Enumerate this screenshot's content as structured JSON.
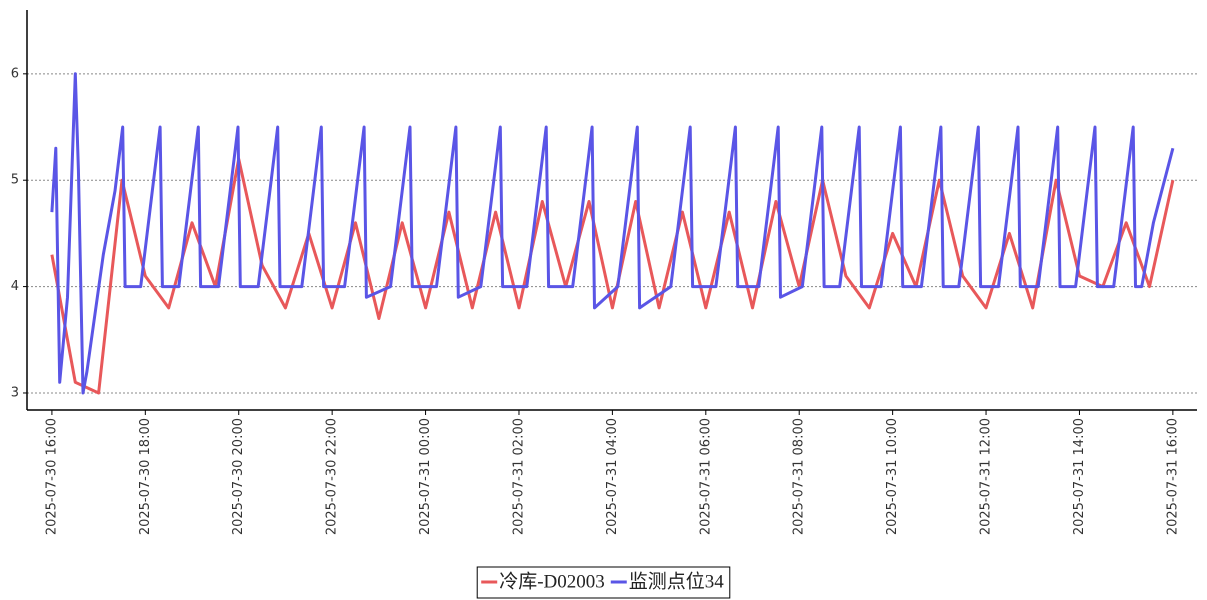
{
  "chart_data": {
    "type": "line",
    "xlim": [
      "2025-07-30 15:28",
      "2025-07-31 16:31"
    ],
    "ylim": [
      2.84,
      6.6
    ],
    "yticks": [
      3,
      4,
      5,
      6
    ],
    "xticks": [
      "2025-07-30 16:00",
      "2025-07-30 18:00",
      "2025-07-30 20:00",
      "2025-07-30 22:00",
      "2025-07-31 00:00",
      "2025-07-31 02:00",
      "2025-07-31 04:00",
      "2025-07-31 06:00",
      "2025-07-31 08:00",
      "2025-07-31 10:00",
      "2025-07-31 12:00",
      "2025-07-31 14:00",
      "2025-07-31 16:00"
    ],
    "grid": true,
    "legend": "bottom",
    "series": [
      {
        "name": "冷库-D02003",
        "color": "#e8585a",
        "x": [
          "2025-07-30 16:00",
          "2025-07-30 16:30",
          "2025-07-30 17:00",
          "2025-07-30 17:30",
          "2025-07-30 18:00",
          "2025-07-30 18:30",
          "2025-07-30 19:00",
          "2025-07-30 19:30",
          "2025-07-30 20:00",
          "2025-07-30 20:30",
          "2025-07-30 21:00",
          "2025-07-30 21:30",
          "2025-07-30 22:00",
          "2025-07-30 22:30",
          "2025-07-30 23:00",
          "2025-07-30 23:30",
          "2025-07-31 00:00",
          "2025-07-31 00:30",
          "2025-07-31 01:00",
          "2025-07-31 01:30",
          "2025-07-31 02:00",
          "2025-07-31 02:30",
          "2025-07-31 03:00",
          "2025-07-31 03:30",
          "2025-07-31 04:00",
          "2025-07-31 04:30",
          "2025-07-31 05:00",
          "2025-07-31 05:30",
          "2025-07-31 06:00",
          "2025-07-31 06:30",
          "2025-07-31 07:00",
          "2025-07-31 07:30",
          "2025-07-31 08:00",
          "2025-07-31 08:30",
          "2025-07-31 09:00",
          "2025-07-31 09:30",
          "2025-07-31 10:00",
          "2025-07-31 10:30",
          "2025-07-31 11:00",
          "2025-07-31 11:30",
          "2025-07-31 12:00",
          "2025-07-31 12:30",
          "2025-07-31 13:00",
          "2025-07-31 13:30",
          "2025-07-31 14:00",
          "2025-07-31 14:30",
          "2025-07-31 15:00",
          "2025-07-31 15:30",
          "2025-07-31 16:00"
        ],
        "values": [
          4.3,
          3.1,
          3.0,
          5.0,
          4.1,
          3.8,
          4.6,
          4.0,
          5.2,
          4.2,
          3.8,
          4.5,
          3.8,
          4.6,
          3.7,
          4.6,
          3.8,
          4.7,
          3.8,
          4.7,
          3.8,
          4.8,
          4.0,
          4.8,
          3.8,
          4.8,
          3.8,
          4.7,
          3.8,
          4.7,
          3.8,
          4.8,
          4.0,
          5.0,
          4.1,
          3.8,
          4.5,
          4.0,
          5.0,
          4.1,
          3.8,
          4.5,
          3.8,
          5.0,
          4.1,
          4.0,
          4.6,
          4.0,
          5.0
        ]
      },
      {
        "name": "监测点位34",
        "color": "#5a55e6",
        "x": [
          "2025-07-30 16:00",
          "2025-07-30 16:05",
          "2025-07-30 16:10",
          "2025-07-30 16:20",
          "2025-07-30 16:30",
          "2025-07-30 16:34",
          "2025-07-30 16:40",
          "2025-07-30 16:45",
          "2025-07-30 17:06",
          "2025-07-30 17:21",
          "2025-07-30 17:31",
          "2025-07-30 17:34",
          "2025-07-30 17:54",
          "2025-07-30 18:09",
          "2025-07-30 18:19",
          "2025-07-30 18:22",
          "2025-07-30 18:43",
          "2025-07-30 18:58",
          "2025-07-30 19:08",
          "2025-07-30 19:11",
          "2025-07-30 19:34",
          "2025-07-30 19:49",
          "2025-07-30 19:59",
          "2025-07-30 20:02",
          "2025-07-30 20:25",
          "2025-07-30 20:40",
          "2025-07-30 20:50",
          "2025-07-30 20:53",
          "2025-07-30 21:21",
          "2025-07-30 21:36",
          "2025-07-30 21:46",
          "2025-07-30 21:49",
          "2025-07-30 22:16",
          "2025-07-30 22:31",
          "2025-07-30 22:41",
          "2025-07-30 22:44",
          "2025-07-30 23:15",
          "2025-07-30 23:30",
          "2025-07-30 23:40",
          "2025-07-30 23:43",
          "2025-07-31 00:14",
          "2025-07-31 00:29",
          "2025-07-31 00:39",
          "2025-07-31 00:42",
          "2025-07-31 01:11",
          "2025-07-31 01:26",
          "2025-07-31 01:36",
          "2025-07-31 01:39",
          "2025-07-31 02:10",
          "2025-07-31 02:25",
          "2025-07-31 02:35",
          "2025-07-31 02:38",
          "2025-07-31 03:09",
          "2025-07-31 03:24",
          "2025-07-31 03:34",
          "2025-07-31 03:37",
          "2025-07-31 04:07",
          "2025-07-31 04:22",
          "2025-07-31 04:32",
          "2025-07-31 04:35",
          "2025-07-31 05:15",
          "2025-07-31 05:30",
          "2025-07-31 05:40",
          "2025-07-31 05:43",
          "2025-07-31 06:13",
          "2025-07-31 06:28",
          "2025-07-31 06:38",
          "2025-07-31 06:41",
          "2025-07-31 07:08",
          "2025-07-31 07:23",
          "2025-07-31 07:33",
          "2025-07-31 07:36",
          "2025-07-31 08:04",
          "2025-07-31 08:19",
          "2025-07-31 08:29",
          "2025-07-31 08:32",
          "2025-07-31 08:52",
          "2025-07-31 09:07",
          "2025-07-31 09:17",
          "2025-07-31 09:20",
          "2025-07-31 09:45",
          "2025-07-31 10:00",
          "2025-07-31 10:10",
          "2025-07-31 10:13",
          "2025-07-31 10:37",
          "2025-07-31 10:52",
          "2025-07-31 11:02",
          "2025-07-31 11:05",
          "2025-07-31 11:25",
          "2025-07-31 11:40",
          "2025-07-31 11:50",
          "2025-07-31 11:53",
          "2025-07-31 12:16",
          "2025-07-31 12:31",
          "2025-07-31 12:41",
          "2025-07-31 12:44",
          "2025-07-31 13:07",
          "2025-07-31 13:22",
          "2025-07-31 13:32",
          "2025-07-31 13:35",
          "2025-07-31 13:55",
          "2025-07-31 14:10",
          "2025-07-31 14:20",
          "2025-07-31 14:23",
          "2025-07-31 14:44",
          "2025-07-31 14:59",
          "2025-07-31 15:09",
          "2025-07-31 15:12",
          "2025-07-31 15:20",
          "2025-07-31 15:35",
          "2025-07-31 16:00"
        ],
        "values": [
          4.7,
          5.3,
          3.1,
          3.9,
          6.0,
          5.1,
          3.0,
          3.2,
          4.3,
          4.9,
          5.5,
          4.0,
          4.0,
          4.9,
          5.5,
          4.0,
          4.0,
          4.9,
          5.5,
          4.0,
          4.0,
          4.9,
          5.5,
          4.0,
          4.0,
          4.9,
          5.5,
          4.0,
          4.0,
          4.9,
          5.5,
          4.0,
          4.0,
          4.9,
          5.5,
          3.9,
          4.0,
          4.9,
          5.5,
          4.0,
          4.0,
          4.9,
          5.5,
          3.9,
          4.0,
          4.9,
          5.5,
          4.0,
          4.0,
          4.9,
          5.5,
          4.0,
          4.0,
          4.9,
          5.5,
          3.8,
          4.0,
          4.9,
          5.5,
          3.8,
          4.0,
          4.9,
          5.5,
          4.0,
          4.0,
          4.9,
          5.5,
          4.0,
          4.0,
          4.9,
          5.5,
          3.9,
          4.0,
          4.9,
          5.5,
          4.0,
          4.0,
          4.9,
          5.5,
          4.0,
          4.0,
          4.9,
          5.5,
          4.0,
          4.0,
          4.9,
          5.5,
          4.0,
          4.0,
          4.9,
          5.5,
          4.0,
          4.0,
          4.9,
          5.5,
          4.0,
          4.0,
          4.9,
          5.5,
          4.0,
          4.0,
          4.9,
          5.5,
          4.0,
          4.0,
          4.9,
          5.5,
          4.0,
          4.0,
          4.6,
          5.3
        ]
      }
    ]
  }
}
